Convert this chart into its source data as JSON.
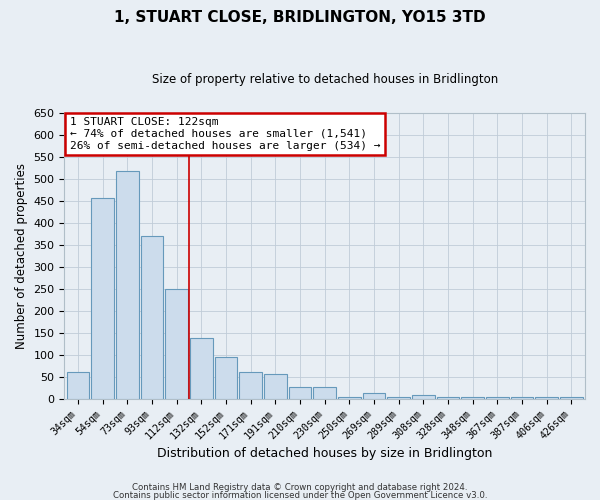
{
  "title": "1, STUART CLOSE, BRIDLINGTON, YO15 3TD",
  "subtitle": "Size of property relative to detached houses in Bridlington",
  "xlabel": "Distribution of detached houses by size in Bridlington",
  "ylabel": "Number of detached properties",
  "bar_labels": [
    "34sqm",
    "54sqm",
    "73sqm",
    "93sqm",
    "112sqm",
    "132sqm",
    "152sqm",
    "171sqm",
    "191sqm",
    "210sqm",
    "230sqm",
    "250sqm",
    "269sqm",
    "289sqm",
    "308sqm",
    "328sqm",
    "348sqm",
    "367sqm",
    "387sqm",
    "406sqm",
    "426sqm"
  ],
  "bar_values": [
    62,
    457,
    519,
    371,
    250,
    140,
    95,
    62,
    58,
    28,
    28,
    5,
    13,
    5,
    10,
    5,
    5,
    5,
    5,
    5,
    5
  ],
  "bar_color": "#ccdcec",
  "bar_edge_color": "#6699bb",
  "ylim": [
    0,
    650
  ],
  "yticks": [
    0,
    50,
    100,
    150,
    200,
    250,
    300,
    350,
    400,
    450,
    500,
    550,
    600,
    650
  ],
  "property_line_x": 4.5,
  "property_line_color": "#cc0000",
  "annotation_title": "1 STUART CLOSE: 122sqm",
  "annotation_line1": "← 74% of detached houses are smaller (1,541)",
  "annotation_line2": "26% of semi-detached houses are larger (534) →",
  "annotation_box_color": "#cc0000",
  "background_color": "#e8eef4",
  "plot_bg_color": "#e8eef4",
  "footer_line1": "Contains HM Land Registry data © Crown copyright and database right 2024.",
  "footer_line2": "Contains public sector information licensed under the Open Government Licence v3.0."
}
